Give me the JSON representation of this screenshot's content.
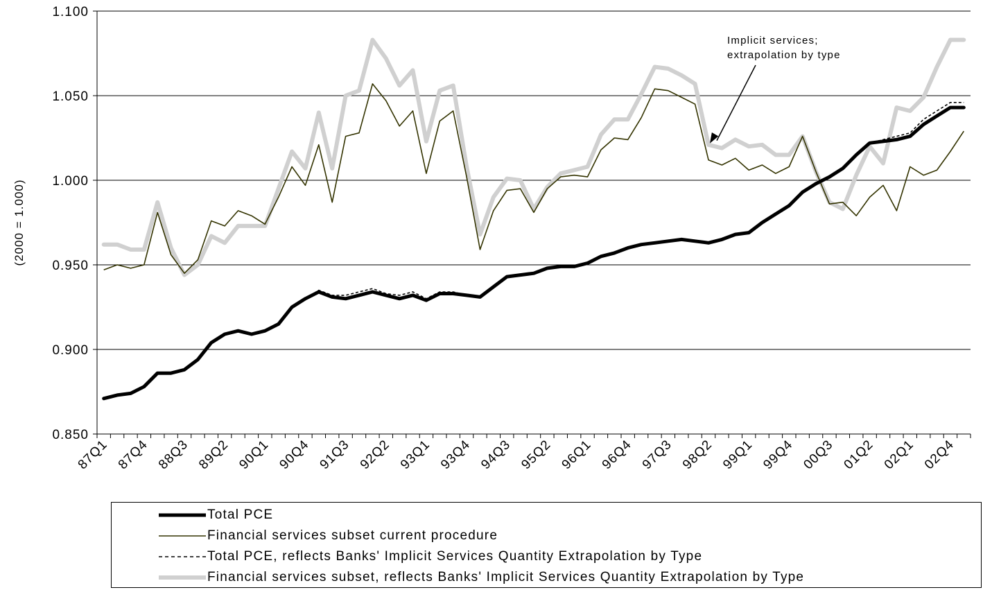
{
  "chart_data": {
    "type": "line",
    "title": "",
    "xlabel": "",
    "ylabel": "(2000 = 1.000)",
    "ylim": [
      0.85,
      1.1
    ],
    "yticks": [
      "0.850",
      "0.900",
      "0.950",
      "1.000",
      "1.050",
      "1.100"
    ],
    "ytick_values": [
      0.85,
      0.9,
      0.95,
      1.0,
      1.05,
      1.1
    ],
    "x": [
      "87Q1",
      "87Q2",
      "87Q3",
      "87Q4",
      "88Q1",
      "88Q2",
      "88Q3",
      "88Q4",
      "89Q1",
      "89Q2",
      "89Q3",
      "89Q4",
      "90Q1",
      "90Q2",
      "90Q3",
      "90Q4",
      "91Q1",
      "91Q2",
      "91Q3",
      "91Q4",
      "92Q1",
      "92Q2",
      "92Q3",
      "92Q4",
      "93Q1",
      "93Q2",
      "93Q3",
      "93Q4",
      "94Q1",
      "94Q2",
      "94Q3",
      "94Q4",
      "95Q1",
      "95Q2",
      "95Q3",
      "95Q4",
      "96Q1",
      "96Q2",
      "96Q3",
      "96Q4",
      "97Q1",
      "97Q2",
      "97Q3",
      "97Q4",
      "98Q1",
      "98Q2",
      "98Q3",
      "98Q4",
      "99Q1",
      "99Q2",
      "99Q3",
      "99Q4",
      "00Q1",
      "00Q2",
      "00Q3",
      "00Q4",
      "01Q1",
      "01Q2",
      "01Q3",
      "01Q4",
      "02Q1",
      "02Q2",
      "02Q3",
      "02Q4",
      "03Q1"
    ],
    "xtick_labels": [
      "87Q1",
      "87Q4",
      "88Q3",
      "89Q2",
      "90Q1",
      "90Q4",
      "91Q3",
      "92Q2",
      "93Q1",
      "93Q4",
      "94Q3",
      "95Q2",
      "96Q1",
      "96Q4",
      "97Q3",
      "98Q2",
      "99Q1",
      "99Q4",
      "00Q3",
      "01Q2",
      "02Q1",
      "02Q4"
    ],
    "grid": "horizontal",
    "legend_position": "bottom",
    "series": [
      {
        "name": "Total PCE",
        "color": "#000000",
        "style": "thick-solid",
        "values": [
          0.871,
          0.873,
          0.874,
          0.878,
          0.886,
          0.886,
          0.888,
          0.894,
          0.904,
          0.909,
          0.911,
          0.909,
          0.911,
          0.915,
          0.925,
          0.93,
          0.934,
          0.931,
          0.93,
          0.932,
          0.934,
          0.932,
          0.93,
          0.932,
          0.929,
          0.933,
          0.933,
          0.932,
          0.931,
          0.937,
          0.943,
          0.944,
          0.945,
          0.948,
          0.949,
          0.949,
          0.951,
          0.955,
          0.957,
          0.96,
          0.962,
          0.963,
          0.964,
          0.965,
          0.964,
          0.963,
          0.965,
          0.968,
          0.969,
          0.975,
          0.98,
          0.985,
          0.993,
          0.998,
          1.002,
          1.007,
          1.015,
          1.022,
          1.023,
          1.024,
          1.026,
          1.033,
          1.038,
          1.043,
          1.043
        ]
      },
      {
        "name": "Financial services subset current procedure",
        "color": "#333300",
        "style": "thin-solid",
        "values": [
          0.947,
          0.95,
          0.948,
          0.95,
          0.981,
          0.956,
          0.945,
          0.953,
          0.976,
          0.973,
          0.982,
          0.979,
          0.974,
          0.99,
          1.008,
          0.997,
          1.021,
          0.987,
          1.026,
          1.028,
          1.057,
          1.047,
          1.032,
          1.041,
          1.004,
          1.035,
          1.041,
          1.002,
          0.959,
          0.982,
          0.994,
          0.995,
          0.981,
          0.995,
          1.002,
          1.003,
          1.002,
          1.018,
          1.025,
          1.024,
          1.037,
          1.054,
          1.053,
          1.049,
          1.045,
          1.012,
          1.009,
          1.013,
          1.006,
          1.009,
          1.004,
          1.008,
          1.026,
          1.005,
          0.986,
          0.987,
          0.979,
          0.99,
          0.997,
          0.982,
          1.008,
          1.003,
          1.006,
          1.017,
          1.029
        ]
      },
      {
        "name": "Total PCE, reflects Banks' Implicit Services Quantity Extrapolation by Type",
        "color": "#000000",
        "style": "dashed",
        "values": [
          0.871,
          0.873,
          0.874,
          0.878,
          0.886,
          0.886,
          0.888,
          0.894,
          0.904,
          0.909,
          0.911,
          0.909,
          0.911,
          0.915,
          0.925,
          0.93,
          0.935,
          0.932,
          0.932,
          0.934,
          0.936,
          0.933,
          0.932,
          0.934,
          0.93,
          0.934,
          0.934,
          0.932,
          0.931,
          0.937,
          0.943,
          0.944,
          0.945,
          0.948,
          0.949,
          0.949,
          0.951,
          0.955,
          0.957,
          0.96,
          0.962,
          0.963,
          0.964,
          0.965,
          0.964,
          0.963,
          0.965,
          0.968,
          0.969,
          0.975,
          0.98,
          0.985,
          0.993,
          0.998,
          1.002,
          1.007,
          1.015,
          1.022,
          1.024,
          1.026,
          1.028,
          1.036,
          1.041,
          1.046,
          1.046
        ]
      },
      {
        "name": "Financial services subset, reflects Banks' Implicit Services Quantity Extrapolation by Type",
        "color": "#d0d0d0",
        "style": "thick-solid",
        "values": [
          0.962,
          0.962,
          0.959,
          0.959,
          0.987,
          0.96,
          0.944,
          0.95,
          0.967,
          0.963,
          0.973,
          0.973,
          0.973,
          0.995,
          1.017,
          1.007,
          1.04,
          1.007,
          1.05,
          1.053,
          1.083,
          1.072,
          1.056,
          1.065,
          1.023,
          1.053,
          1.056,
          1.008,
          0.968,
          0.99,
          1.001,
          1.0,
          0.983,
          0.996,
          1.004,
          1.006,
          1.008,
          1.027,
          1.036,
          1.036,
          1.051,
          1.067,
          1.066,
          1.062,
          1.057,
          1.021,
          1.019,
          1.024,
          1.02,
          1.021,
          1.015,
          1.015,
          1.026,
          1.005,
          0.987,
          0.983,
          1.003,
          1.02,
          1.01,
          1.043,
          1.041,
          1.049,
          1.067,
          1.083,
          1.083
        ]
      }
    ],
    "annotation": {
      "lines": [
        "Implicit services;",
        "extrapolation by type"
      ],
      "points_to_category": "98Q2"
    }
  },
  "legend": {
    "items": [
      {
        "label": "Total PCE",
        "style": "thick-solid",
        "color": "#000000"
      },
      {
        "label": "Financial services subset current procedure",
        "style": "thin-solid",
        "color": "#333300"
      },
      {
        "label": "Total PCE, reflects Banks' Implicit Services Quantity Extrapolation by Type",
        "style": "dashed",
        "color": "#000000"
      },
      {
        "label": "Financial services subset, reflects Banks' Implicit Services Quantity Extrapolation by Type",
        "style": "thick-solid",
        "color": "#d0d0d0"
      }
    ]
  }
}
